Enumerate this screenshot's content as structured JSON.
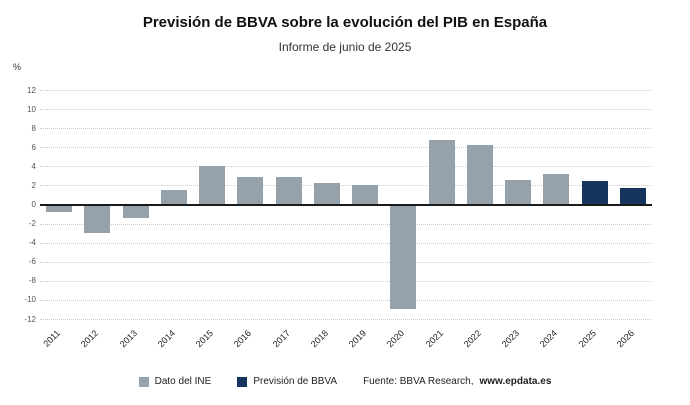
{
  "header": {
    "title": "Previsión de BBVA sobre la evolución del PIB en España",
    "subtitle": "Informe de junio de 2025"
  },
  "y_axis": {
    "unit_label": "%"
  },
  "legend": {
    "ine_label": "Dato del INE",
    "bbva_label": "Previsión de BBVA"
  },
  "source": {
    "prefix": "Fuente: BBVA Research, ",
    "link": "www.epdata.es"
  },
  "colors": {
    "ine": "#96a2ab",
    "bbva": "#15355e",
    "grid": "#c9c9c9",
    "zero_line": "#1a1a1a"
  },
  "chart_data": {
    "type": "bar",
    "title": "Previsión de BBVA sobre la evolución del PIB en España",
    "subtitle": "Informe de junio de 2025",
    "ylabel": "%",
    "ylim": [
      -12,
      12
    ],
    "ytick_step": 2,
    "grid": true,
    "legend_position": "bottom",
    "categories": [
      "2011",
      "2012",
      "2013",
      "2014",
      "2015",
      "2016",
      "2017",
      "2018",
      "2019",
      "2020",
      "2021",
      "2022",
      "2023",
      "2024",
      "2025",
      "2026"
    ],
    "series": [
      {
        "name": "Dato del INE",
        "color_key": "ine",
        "values": [
          -0.8,
          -3.0,
          -1.4,
          1.5,
          4.0,
          2.9,
          2.9,
          2.3,
          2.0,
          -10.9,
          6.8,
          6.2,
          2.6,
          3.2,
          null,
          null
        ]
      },
      {
        "name": "Previsión de BBVA",
        "color_key": "bbva",
        "values": [
          null,
          null,
          null,
          null,
          null,
          null,
          null,
          null,
          null,
          null,
          null,
          null,
          null,
          null,
          2.5,
          1.7
        ]
      }
    ]
  }
}
